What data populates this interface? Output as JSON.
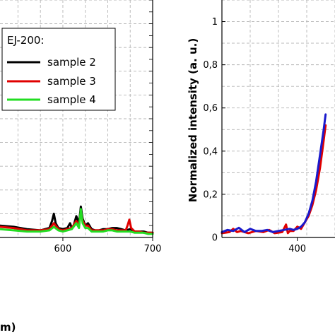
{
  "chart_data": [
    {
      "type": "line",
      "panel": "left",
      "xlim": [
        530,
        700
      ],
      "ylim": [
        0,
        1
      ],
      "x_ticks": [
        "600",
        "700"
      ],
      "xlabel_fragment": "m)",
      "grid": true,
      "legend": {
        "title": "EJ-200:",
        "placement": "top-left",
        "entries": [
          {
            "label": "sample 2",
            "color": "#000000"
          },
          {
            "label": "sample 3",
            "color": "#e00000"
          },
          {
            "label": "sample 4",
            "color": "#22dd22"
          }
        ]
      },
      "series": [
        {
          "name": "sample 2",
          "color": "#000000",
          "x": [
            530,
            545,
            560,
            575,
            585,
            588,
            590,
            592,
            595,
            600,
            605,
            608,
            610,
            612,
            615,
            618,
            620,
            622,
            625,
            628,
            632,
            636,
            640,
            645,
            650,
            655,
            660,
            665,
            670,
            675,
            680,
            685,
            690,
            695,
            700
          ],
          "y": [
            0.05,
            0.045,
            0.035,
            0.03,
            0.04,
            0.07,
            0.1,
            0.06,
            0.04,
            0.035,
            0.04,
            0.06,
            0.04,
            0.05,
            0.09,
            0.06,
            0.13,
            0.08,
            0.05,
            0.06,
            0.035,
            0.03,
            0.03,
            0.035,
            0.035,
            0.04,
            0.04,
            0.035,
            0.03,
            0.035,
            0.025,
            0.025,
            0.025,
            0.02,
            0.02
          ]
        },
        {
          "name": "sample 3",
          "color": "#e00000",
          "x": [
            530,
            545,
            560,
            575,
            585,
            590,
            595,
            600,
            605,
            610,
            615,
            618,
            620,
            622,
            625,
            628,
            632,
            636,
            640,
            645,
            650,
            655,
            660,
            665,
            670,
            672,
            674,
            676,
            680,
            685,
            690,
            695,
            700
          ],
          "y": [
            0.045,
            0.04,
            0.03,
            0.03,
            0.035,
            0.06,
            0.035,
            0.03,
            0.035,
            0.04,
            0.07,
            0.05,
            0.11,
            0.07,
            0.05,
            0.05,
            0.03,
            0.03,
            0.03,
            0.03,
            0.035,
            0.035,
            0.03,
            0.03,
            0.03,
            0.05,
            0.075,
            0.04,
            0.025,
            0.025,
            0.02,
            0.02,
            0.02
          ]
        },
        {
          "name": "sample 4",
          "color": "#22dd22",
          "x": [
            530,
            545,
            560,
            575,
            585,
            590,
            595,
            600,
            605,
            610,
            615,
            618,
            620,
            622,
            625,
            628,
            632,
            636,
            640,
            645,
            650,
            655,
            660,
            665,
            670,
            675,
            680,
            685,
            690,
            695,
            700
          ],
          "y": [
            0.035,
            0.03,
            0.025,
            0.025,
            0.03,
            0.045,
            0.03,
            0.025,
            0.03,
            0.035,
            0.06,
            0.04,
            0.12,
            0.06,
            0.04,
            0.04,
            0.025,
            0.025,
            0.025,
            0.025,
            0.03,
            0.03,
            0.025,
            0.025,
            0.025,
            0.025,
            0.02,
            0.02,
            0.02,
            0.015,
            0.015
          ]
        }
      ]
    },
    {
      "type": "line",
      "panel": "right",
      "xlim": [
        360,
        420
      ],
      "ylim": [
        0,
        1.1
      ],
      "x_ticks": [
        "400"
      ],
      "y_ticks": [
        "0",
        "0,2",
        "0,4",
        "0,6",
        "0,8",
        "1"
      ],
      "ylabel": "Normalized intensity (a. u.)",
      "grid": true,
      "series": [
        {
          "color": "#e00000",
          "x": [
            360,
            364,
            366,
            368,
            370,
            374,
            378,
            382,
            385,
            388,
            392,
            394,
            395,
            396,
            398,
            400,
            402,
            404,
            406,
            408,
            410,
            412,
            414,
            415
          ],
          "y": [
            0.02,
            0.025,
            0.04,
            0.025,
            0.03,
            0.02,
            0.03,
            0.025,
            0.035,
            0.02,
            0.025,
            0.06,
            0.02,
            0.03,
            0.03,
            0.05,
            0.04,
            0.07,
            0.1,
            0.15,
            0.22,
            0.32,
            0.45,
            0.52
          ]
        },
        {
          "color": "#1a1acc",
          "x": [
            360,
            363,
            366,
            369,
            372,
            375,
            378,
            381,
            384,
            387,
            390,
            393,
            396,
            398,
            400,
            402,
            404,
            406,
            408,
            410,
            412,
            414,
            415
          ],
          "y": [
            0.025,
            0.035,
            0.03,
            0.045,
            0.025,
            0.04,
            0.03,
            0.03,
            0.035,
            0.025,
            0.03,
            0.035,
            0.04,
            0.035,
            0.04,
            0.05,
            0.07,
            0.11,
            0.17,
            0.26,
            0.38,
            0.5,
            0.57
          ]
        }
      ]
    }
  ]
}
